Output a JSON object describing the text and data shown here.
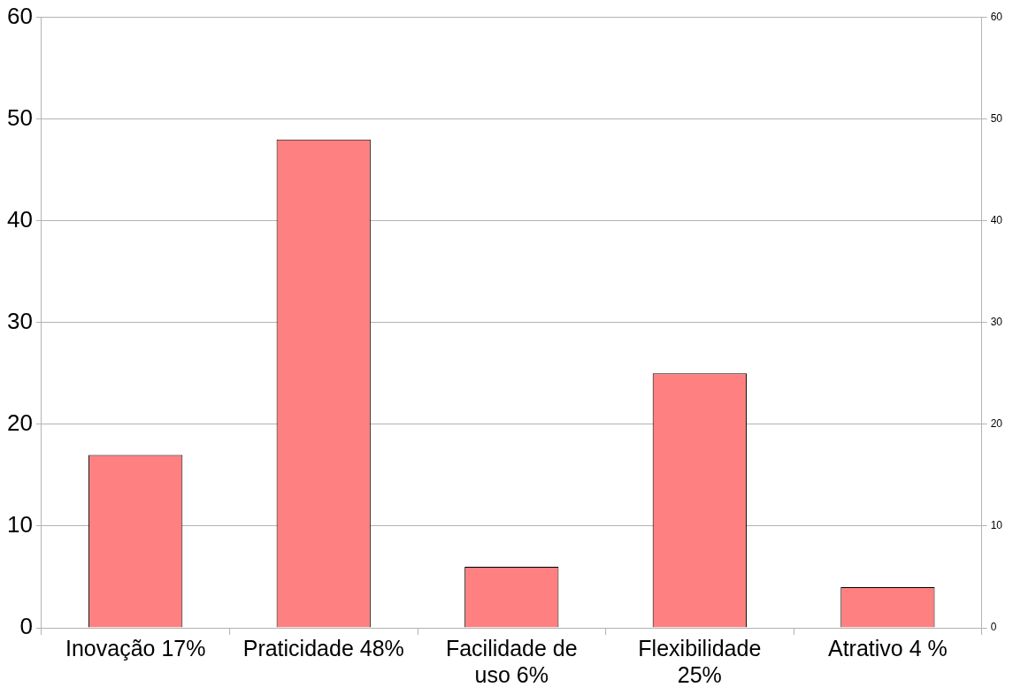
{
  "chart_data": {
    "type": "bar",
    "categories": [
      "Inovação 17%",
      "Praticidade 48%",
      "Facilidade de uso 6%",
      "Flexibilidade 25%",
      "Atrativo 4 %"
    ],
    "values": [
      17,
      48,
      6,
      25,
      4
    ],
    "color": "#ff8080",
    "ylim": [
      0,
      60
    ],
    "yticks": [
      0,
      10,
      20,
      30,
      40,
      50,
      60
    ],
    "y2lim": [
      0,
      60
    ],
    "y2ticks": [
      0,
      10,
      20,
      30,
      40,
      50,
      60
    ],
    "grid": "y"
  }
}
